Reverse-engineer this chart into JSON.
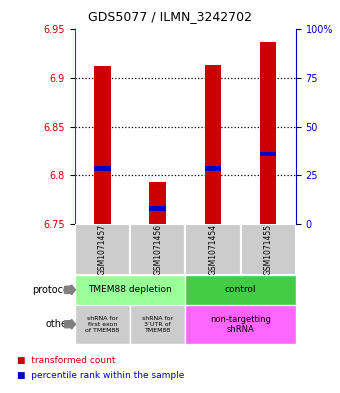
{
  "title": "GDS5077 / ILMN_3242702",
  "samples": [
    "GSM1071457",
    "GSM1071456",
    "GSM1071454",
    "GSM1071455"
  ],
  "bar_bottoms": [
    6.75,
    6.75,
    6.75,
    6.75
  ],
  "bar_tops": [
    6.912,
    6.793,
    6.913,
    6.937
  ],
  "percentile_values": [
    6.807,
    6.766,
    6.807,
    6.822
  ],
  "ylim": [
    6.75,
    6.95
  ],
  "yticks_left": [
    6.75,
    6.8,
    6.85,
    6.9,
    6.95
  ],
  "yticks_right_vals": [
    6.75,
    6.8,
    6.85,
    6.9,
    6.95
  ],
  "yticks_right_labels": [
    "0",
    "25",
    "50",
    "75",
    "100%"
  ],
  "bar_color": "#cc0000",
  "percentile_color": "#0000cc",
  "bar_width": 0.3,
  "protocol_text": [
    "TMEM88 depletion",
    "control"
  ],
  "protocol_colors": [
    "#99ff99",
    "#44cc44"
  ],
  "other_text_left1": "shRNA for\nfirst exon\nof TMEM88",
  "other_text_left2": "shRNA for\n3’UTR of\nTMEM88",
  "other_text_right": "non-targetting\nshRNA",
  "other_color_left": "#cccccc",
  "other_color_right": "#ff66ff",
  "sample_bg": "#cccccc",
  "left_axis_color": "#cc0000",
  "right_axis_color": "#0000cc",
  "legend_red": "transformed count",
  "legend_blue": "percentile rank within the sample",
  "background_color": "#ffffff"
}
